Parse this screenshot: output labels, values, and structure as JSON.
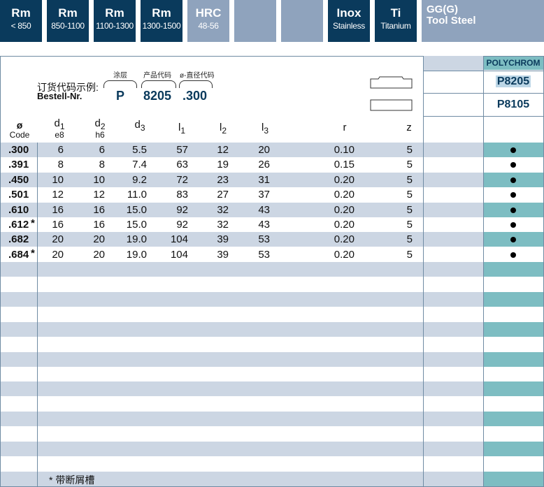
{
  "categories": [
    {
      "title": "Rm",
      "sub": "< 850",
      "style": "dark"
    },
    {
      "title": "Rm",
      "sub": "850-1100",
      "style": "dark"
    },
    {
      "title": "Rm",
      "sub": "1100-1300",
      "style": "dark"
    },
    {
      "title": "Rm",
      "sub": "1300-1500",
      "style": "dark"
    },
    {
      "title": "HRC",
      "sub": "48-56",
      "style": "light"
    },
    {
      "title": "",
      "sub": "",
      "style": "light"
    },
    {
      "title": "",
      "sub": "",
      "style": "light"
    },
    {
      "title": "Inox",
      "sub": "Stainless",
      "style": "dark"
    },
    {
      "title": "Ti",
      "sub": "Titanium",
      "style": "dark"
    },
    {
      "title": "GG(G)",
      "sub": "Tool Steel",
      "style": "light"
    }
  ],
  "order_example": {
    "label_cn": "订货代码示例:",
    "label_de": "Bestell-Nr.",
    "coating_label": "涂层",
    "coating_value": "P",
    "product_label": "产品代码",
    "product_value": "8205",
    "diameter_label": "ø-直径代码",
    "diameter_value": ".300"
  },
  "columns": {
    "code_top": "ø",
    "code_bottom": "Code",
    "d1": "d",
    "d1_sub": "1",
    "d1_tol": "e8",
    "d2": "d",
    "d2_sub": "2",
    "d2_tol": "h6",
    "d3": "d",
    "d3_sub": "3",
    "l1": "l",
    "l1_sub": "1",
    "l2": "l",
    "l2_sub": "2",
    "l3": "l",
    "l3_sub": "3",
    "r": "r",
    "z": "z"
  },
  "products": {
    "brand": "POLYCHROM",
    "codes": [
      "P8205",
      "P8105"
    ]
  },
  "rows": [
    {
      "code": ".300",
      "star": "",
      "d1": "6",
      "d2": "6",
      "d3": "5.5",
      "l1": "57",
      "l2": "12",
      "l3": "20",
      "r": "0.10",
      "z": "5",
      "avail": true
    },
    {
      "code": ".391",
      "star": "",
      "d1": "8",
      "d2": "8",
      "d3": "7.4",
      "l1": "63",
      "l2": "19",
      "l3": "26",
      "r": "0.15",
      "z": "5",
      "avail": true
    },
    {
      "code": ".450",
      "star": "",
      "d1": "10",
      "d2": "10",
      "d3": "9.2",
      "l1": "72",
      "l2": "23",
      "l3": "31",
      "r": "0.20",
      "z": "5",
      "avail": true
    },
    {
      "code": ".501",
      "star": "",
      "d1": "12",
      "d2": "12",
      "d3": "11.0",
      "l1": "83",
      "l2": "27",
      "l3": "37",
      "r": "0.20",
      "z": "5",
      "avail": true
    },
    {
      "code": ".610",
      "star": "",
      "d1": "16",
      "d2": "16",
      "d3": "15.0",
      "l1": "92",
      "l2": "32",
      "l3": "43",
      "r": "0.20",
      "z": "5",
      "avail": true
    },
    {
      "code": ".612",
      "star": "*",
      "d1": "16",
      "d2": "16",
      "d3": "15.0",
      "l1": "92",
      "l2": "32",
      "l3": "43",
      "r": "0.20",
      "z": "5",
      "avail": true
    },
    {
      "code": ".682",
      "star": "",
      "d1": "20",
      "d2": "20",
      "d3": "19.0",
      "l1": "104",
      "l2": "39",
      "l3": "53",
      "r": "0.20",
      "z": "5",
      "avail": true
    },
    {
      "code": ".684",
      "star": "*",
      "d1": "20",
      "d2": "20",
      "d3": "19.0",
      "l1": "104",
      "l2": "39",
      "l3": "53",
      "r": "0.20",
      "z": "5",
      "avail": true
    }
  ],
  "footnote": "* 带断屑槽",
  "colors": {
    "dark": "#0a3a5c",
    "light": "#8fa3bd",
    "band": "#ccd6e3",
    "teal": "#7dbdc2"
  }
}
